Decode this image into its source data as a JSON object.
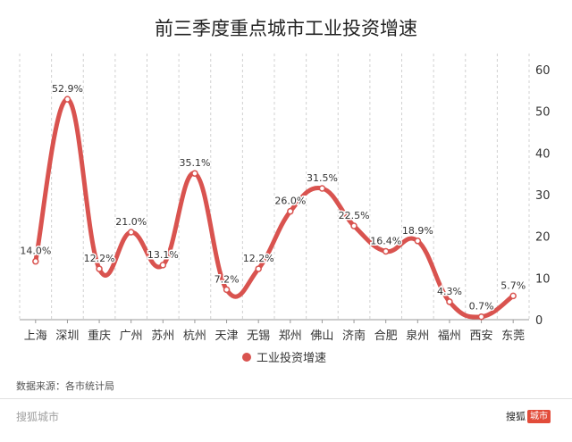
{
  "colors": {
    "line": "#d9534f",
    "text": "#333333",
    "grid": "#d0d0d0"
  },
  "chart_data": {
    "type": "line",
    "title": "前三季度重点城市工业投资增速",
    "categories": [
      "上海",
      "深圳",
      "重庆",
      "广州",
      "苏州",
      "杭州",
      "天津",
      "无锡",
      "郑州",
      "佛山",
      "济南",
      "合肥",
      "泉州",
      "福州",
      "西安",
      "东莞"
    ],
    "series": [
      {
        "name": "工业投资增速",
        "values": [
          14.0,
          52.9,
          12.2,
          21.0,
          13.1,
          35.1,
          7.2,
          12.2,
          26.0,
          31.5,
          22.5,
          16.4,
          18.9,
          4.3,
          0.7,
          5.7
        ]
      }
    ],
    "data_labels": [
      "14.0%",
      "52.9%",
      "12.2%",
      "21.0%",
      "13.1%",
      "35.1%",
      "7.2%",
      "12.2%",
      "26.0%",
      "31.5%",
      "22.5%",
      "16.4%",
      "18.9%",
      "4.3%",
      "0.7%",
      "5.7%"
    ],
    "ylim": [
      0,
      60
    ],
    "yticks": [
      "0",
      "10",
      "20",
      "30",
      "40",
      "50",
      "60"
    ],
    "y_axis_side": "right",
    "smooth": true,
    "grid": "vertical dashed",
    "legend_position": "bottom"
  },
  "source": "数据来源：各市统计局",
  "footer": {
    "left": "搜狐城市",
    "brand": "搜狐",
    "badge": "城市"
  }
}
